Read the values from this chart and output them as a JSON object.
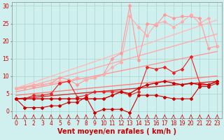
{
  "background_color": "#cff0ee",
  "grid_color": "#aad4d0",
  "xlabel": "Vent moyen/en rafales ( km/h )",
  "xlabel_color": "#cc0000",
  "xlabel_fontsize": 7,
  "ylabel_ticks": [
    0,
    5,
    10,
    15,
    20,
    25,
    30
  ],
  "xticks": [
    0,
    1,
    2,
    3,
    4,
    5,
    6,
    7,
    8,
    9,
    10,
    11,
    12,
    13,
    14,
    15,
    16,
    17,
    18,
    19,
    20,
    21,
    22,
    23
  ],
  "xlim": [
    -0.5,
    23.5
  ],
  "ylim": [
    -2,
    31
  ],
  "lines": [
    {
      "x": [
        0,
        23
      ],
      "y": [
        6.5,
        26.0
      ],
      "color": "#ffbbbb",
      "linewidth": 1.0,
      "marker": null
    },
    {
      "x": [
        0,
        23
      ],
      "y": [
        6.0,
        22.0
      ],
      "color": "#ffaaaa",
      "linewidth": 1.0,
      "marker": null
    },
    {
      "x": [
        0,
        23
      ],
      "y": [
        5.5,
        17.0
      ],
      "color": "#ff9999",
      "linewidth": 1.0,
      "marker": null
    },
    {
      "x": [
        0,
        23
      ],
      "y": [
        4.5,
        10.0
      ],
      "color": "#ff8080",
      "linewidth": 1.0,
      "marker": null
    },
    {
      "x": [
        0,
        1,
        2,
        3,
        4,
        5,
        6,
        7,
        8,
        9,
        10,
        11,
        12,
        13,
        14,
        15,
        16,
        17,
        18,
        19,
        20,
        21,
        22,
        23
      ],
      "y": [
        6.5,
        6.8,
        7.0,
        7.5,
        8.0,
        9.5,
        9.0,
        7.5,
        9.0,
        9.5,
        10.5,
        15.0,
        16.5,
        30.0,
        14.5,
        25.0,
        24.5,
        27.5,
        26.5,
        27.0,
        27.0,
        26.5,
        18.0,
        18.5
      ],
      "color": "#ff9999",
      "linewidth": 0.8,
      "marker": "D",
      "markersize": 2.0
    },
    {
      "x": [
        0,
        1,
        2,
        3,
        4,
        5,
        6,
        7,
        8,
        9,
        10,
        11,
        12,
        13,
        14,
        15,
        16,
        17,
        18,
        19,
        20,
        21,
        22,
        23
      ],
      "y": [
        6.5,
        7.0,
        7.5,
        7.5,
        8.0,
        8.5,
        8.5,
        9.5,
        9.0,
        9.5,
        10.5,
        12.5,
        14.0,
        27.0,
        24.0,
        21.5,
        25.0,
        25.5,
        24.0,
        25.5,
        27.5,
        25.0,
        26.5,
        18.5
      ],
      "color": "#ffaaaa",
      "linewidth": 0.8,
      "marker": "D",
      "markersize": 2.0
    },
    {
      "x": [
        0,
        1,
        2,
        3,
        4,
        5,
        6,
        7,
        8,
        9,
        10,
        11,
        12,
        13,
        14,
        15,
        16,
        17,
        18,
        19,
        20,
        21,
        22,
        23
      ],
      "y": [
        3.5,
        3.5,
        4.5,
        4.5,
        5.0,
        8.0,
        8.5,
        4.0,
        4.5,
        5.5,
        5.5,
        5.5,
        5.5,
        4.5,
        5.5,
        12.5,
        12.0,
        12.5,
        11.0,
        12.0,
        15.5,
        8.0,
        7.5,
        8.5
      ],
      "color": "#ee2222",
      "linewidth": 0.8,
      "marker": "D",
      "markersize": 2.0
    },
    {
      "x": [
        0,
        1,
        2,
        3,
        4,
        5,
        6,
        7,
        8,
        9,
        10,
        11,
        12,
        13,
        14,
        15,
        16,
        17,
        18,
        19,
        20,
        21,
        22,
        23
      ],
      "y": [
        3.5,
        3.5,
        3.5,
        3.5,
        3.5,
        3.5,
        3.5,
        3.5,
        3.5,
        3.5,
        3.5,
        4.5,
        5.5,
        5.0,
        6.5,
        7.5,
        8.0,
        8.5,
        8.0,
        7.5,
        8.0,
        7.5,
        7.5,
        8.5
      ],
      "color": "#cc0000",
      "linewidth": 1.0,
      "marker": "D",
      "markersize": 2.0
    },
    {
      "x": [
        0,
        1,
        2,
        3,
        4,
        5,
        6,
        7,
        8,
        9,
        10,
        11,
        12,
        13,
        14,
        15,
        16,
        17,
        18,
        19,
        20,
        21,
        22,
        23
      ],
      "y": [
        3.5,
        1.0,
        1.0,
        1.0,
        1.5,
        1.5,
        2.5,
        2.5,
        4.0,
        -0.5,
        0.5,
        0.5,
        0.5,
        -0.5,
        4.5,
        4.5,
        4.5,
        4.0,
        3.5,
        3.5,
        3.5,
        7.0,
        7.0,
        8.0
      ],
      "color": "#cc0000",
      "linewidth": 0.8,
      "marker": "D",
      "markersize": 2.0
    },
    {
      "x": [
        0,
        23
      ],
      "y": [
        3.5,
        8.5
      ],
      "color": "#cc3333",
      "linewidth": 1.0,
      "marker": null
    }
  ],
  "tick_fontsize": 5.5,
  "tick_color": "#cc0000",
  "spine_color": "#888888"
}
